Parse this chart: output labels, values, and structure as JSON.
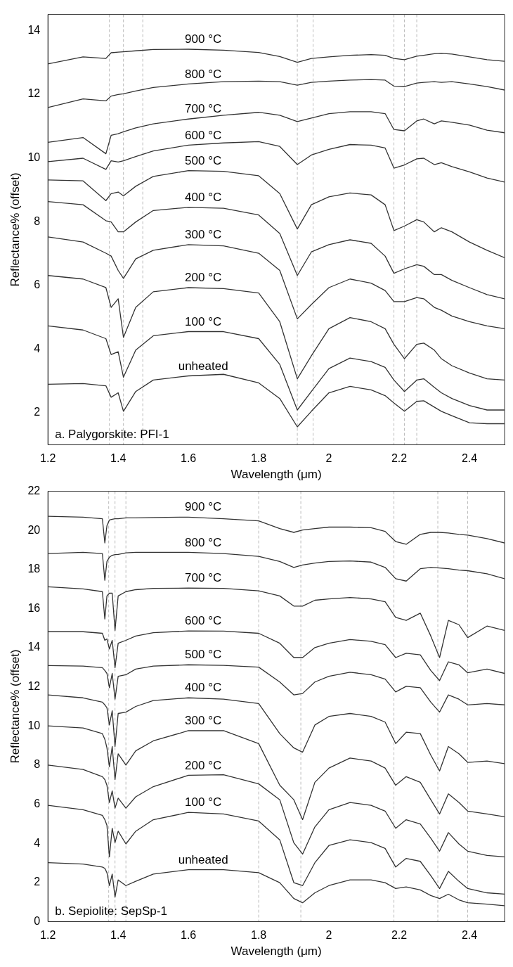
{
  "chart_data": [
    {
      "type": "line",
      "xlabel": "Wavelength (μm)",
      "ylabel": "Reflectance% (offset)",
      "annotations": [
        "a. Palygorskite: PFI-1"
      ],
      "line_style": "solid",
      "x": [
        1.2,
        1.3,
        1.365,
        1.38,
        1.4,
        1.415,
        1.45,
        1.5,
        1.6,
        1.7,
        1.8,
        1.86,
        1.91,
        1.95,
        2.0,
        2.06,
        2.12,
        2.16,
        2.185,
        2.215,
        2.25,
        2.27,
        2.3,
        2.32,
        2.35,
        2.4,
        2.45,
        2.5
      ],
      "xlim": [
        1.2,
        2.5
      ],
      "xticks": [
        1.2,
        1.4,
        1.6,
        1.8,
        2,
        2.2,
        2.4
      ],
      "ylim": [
        1,
        14.5
      ],
      "yticks": [
        2,
        4,
        6,
        8,
        10,
        12,
        14
      ],
      "ref_lines": [
        {
          "axis": "x",
          "value": 1.375,
          "color": "#bbbbbb",
          "line_style": "dashed"
        },
        {
          "axis": "x",
          "value": 1.415,
          "color": "#bbbbbb",
          "line_style": "dashed"
        },
        {
          "axis": "x",
          "value": 1.47,
          "color": "#bbbbbb",
          "line_style": "dashed"
        },
        {
          "axis": "x",
          "value": 1.91,
          "color": "#bbbbbb",
          "line_style": "dashed"
        },
        {
          "axis": "x",
          "value": 1.955,
          "color": "#bbbbbb",
          "line_style": "dashed"
        },
        {
          "axis": "x",
          "value": 2.185,
          "color": "#bbbbbb",
          "line_style": "dashed"
        },
        {
          "axis": "x",
          "value": 2.215,
          "color": "#bbbbbb",
          "line_style": "dashed"
        },
        {
          "axis": "x",
          "value": 2.25,
          "color": "#bbbbbb",
          "line_style": "dashed"
        }
      ],
      "series": [
        {
          "name": "900 °C",
          "color": "#333333",
          "values": [
            12.95,
            13.17,
            13.12,
            13.3,
            13.32,
            13.33,
            13.36,
            13.4,
            13.41,
            13.38,
            13.31,
            13.18,
            13.0,
            13.12,
            13.17,
            13.22,
            13.24,
            13.22,
            13.12,
            13.08,
            13.19,
            13.22,
            13.27,
            13.28,
            13.26,
            13.17,
            13.08,
            13.03
          ]
        },
        {
          "name": "800 °C",
          "color": "#333333",
          "values": [
            11.58,
            11.85,
            11.79,
            11.94,
            11.99,
            12.01,
            12.1,
            12.21,
            12.32,
            12.39,
            12.41,
            12.39,
            12.28,
            12.37,
            12.41,
            12.44,
            12.46,
            12.44,
            12.25,
            12.24,
            12.35,
            12.37,
            12.39,
            12.37,
            12.39,
            12.32,
            12.24,
            12.13
          ]
        },
        {
          "name": "700 °C",
          "color": "#333333",
          "values": [
            10.49,
            10.64,
            10.13,
            10.71,
            10.76,
            10.82,
            10.94,
            11.07,
            11.22,
            11.34,
            11.43,
            11.34,
            11.14,
            11.25,
            11.39,
            11.45,
            11.45,
            11.39,
            10.89,
            10.85,
            11.16,
            11.22,
            11.07,
            11.16,
            11.12,
            11.03,
            10.87,
            10.79
          ]
        },
        {
          "name": "600 °C",
          "color": "#333333",
          "values": [
            9.88,
            9.99,
            9.64,
            9.91,
            9.87,
            9.91,
            10.04,
            10.22,
            10.4,
            10.47,
            10.51,
            10.36,
            9.79,
            10.09,
            10.27,
            10.42,
            10.4,
            10.31,
            9.68,
            9.78,
            9.97,
            9.99,
            9.79,
            9.85,
            9.73,
            9.56,
            9.37,
            9.24
          ]
        },
        {
          "name": "500 °C",
          "color": "#333333",
          "values": [
            9.31,
            9.28,
            8.66,
            8.88,
            8.93,
            8.81,
            9.11,
            9.42,
            9.6,
            9.58,
            9.44,
            8.88,
            7.77,
            8.53,
            8.78,
            8.9,
            8.84,
            8.53,
            7.72,
            7.86,
            8.06,
            7.99,
            7.68,
            7.81,
            7.68,
            7.36,
            7.1,
            6.87
          ]
        },
        {
          "name": "400 °C",
          "color": "#333333",
          "values": [
            8.63,
            8.53,
            8.03,
            7.99,
            7.68,
            7.68,
            7.99,
            8.35,
            8.45,
            8.42,
            8.21,
            7.63,
            6.31,
            7.05,
            7.28,
            7.43,
            7.32,
            6.92,
            6.38,
            6.52,
            6.65,
            6.6,
            6.34,
            6.34,
            6.16,
            5.93,
            5.71,
            5.58
          ]
        },
        {
          "name": "300 °C",
          "color": "#333333",
          "values": [
            7.52,
            7.36,
            7.01,
            6.92,
            6.47,
            6.22,
            6.83,
            7.1,
            7.28,
            7.24,
            7.01,
            6.47,
            4.95,
            5.4,
            5.93,
            6.2,
            6.07,
            5.84,
            5.49,
            5.49,
            5.62,
            5.58,
            5.31,
            5.22,
            5.04,
            4.86,
            4.73,
            4.64
          ]
        },
        {
          "name": "200 °C",
          "color": "#333333",
          "values": [
            6.31,
            6.2,
            5.93,
            5.31,
            5.58,
            4.37,
            5.31,
            5.8,
            5.93,
            5.9,
            5.76,
            4.86,
            3.07,
            3.79,
            4.64,
            4.99,
            4.86,
            4.64,
            4.15,
            3.7,
            4.15,
            4.19,
            3.97,
            3.7,
            3.48,
            3.25,
            3.07,
            3.03
          ]
        },
        {
          "name": "100 °C",
          "color": "#333333",
          "values": [
            4.73,
            4.6,
            4.33,
            3.83,
            3.92,
            3.12,
            3.97,
            4.42,
            4.55,
            4.55,
            4.33,
            3.52,
            2.09,
            2.67,
            3.39,
            3.72,
            3.61,
            3.43,
            3.03,
            2.67,
            3.03,
            3.07,
            2.8,
            2.63,
            2.45,
            2.23,
            2.09,
            2.09
          ]
        },
        {
          "name": "unheated",
          "color": "#333333",
          "values": [
            2.9,
            2.92,
            2.85,
            2.49,
            2.63,
            2.05,
            2.67,
            3.03,
            3.16,
            3.21,
            2.94,
            2.45,
            1.56,
            2.05,
            2.63,
            2.83,
            2.72,
            2.54,
            2.31,
            2.05,
            2.36,
            2.38,
            2.18,
            2.05,
            1.91,
            1.69,
            1.66,
            1.66
          ]
        }
      ]
    },
    {
      "type": "line",
      "xlabel": "Wavelength (μm)",
      "ylabel": "Reflectance% (offset)",
      "annotations": [
        "b. Sepiolite: SepSp-1"
      ],
      "line_style": "solid",
      "x": [
        1.2,
        1.3,
        1.355,
        1.362,
        1.368,
        1.375,
        1.383,
        1.391,
        1.4,
        1.422,
        1.45,
        1.5,
        1.6,
        1.7,
        1.8,
        1.86,
        1.9,
        1.925,
        1.96,
        2.0,
        2.06,
        2.12,
        2.16,
        2.19,
        2.22,
        2.26,
        2.29,
        2.315,
        2.34,
        2.37,
        2.395,
        2.45,
        2.5
      ],
      "xlim": [
        1.2,
        2.5
      ],
      "xticks": [
        1.2,
        1.4,
        1.6,
        1.8,
        2,
        2.2,
        2.4
      ],
      "ylim": [
        0,
        22
      ],
      "yticks": [
        0,
        2,
        4,
        6,
        8,
        10,
        12,
        14,
        16,
        18,
        20,
        22
      ],
      "ref_lines": [
        {
          "axis": "x",
          "value": 1.373,
          "color": "#bbbbbb",
          "line_style": "dashed"
        },
        {
          "axis": "x",
          "value": 1.391,
          "color": "#bbbbbb",
          "line_style": "dashed"
        },
        {
          "axis": "x",
          "value": 1.422,
          "color": "#bbbbbb",
          "line_style": "dashed"
        },
        {
          "axis": "x",
          "value": 1.8,
          "color": "#bbbbbb",
          "line_style": "dashed"
        },
        {
          "axis": "x",
          "value": 1.92,
          "color": "#bbbbbb",
          "line_style": "dashed"
        },
        {
          "axis": "x",
          "value": 2.185,
          "color": "#bbbbbb",
          "line_style": "dashed"
        },
        {
          "axis": "x",
          "value": 2.31,
          "color": "#bbbbbb",
          "line_style": "dashed"
        },
        {
          "axis": "x",
          "value": 2.395,
          "color": "#bbbbbb",
          "line_style": "dashed"
        }
      ],
      "series": [
        {
          "name": "900 °C",
          "color": "#333333",
          "values": [
            20.72,
            20.68,
            20.6,
            19.36,
            20.24,
            20.53,
            20.57,
            20.6,
            20.6,
            20.64,
            20.64,
            20.66,
            20.68,
            20.6,
            20.49,
            20.09,
            19.9,
            20.02,
            20.09,
            20.17,
            20.17,
            20.14,
            19.95,
            19.43,
            19.29,
            19.8,
            19.9,
            19.9,
            19.87,
            19.8,
            19.76,
            19.58,
            19.36
          ]
        },
        {
          "name": "800 °C",
          "color": "#333333",
          "values": [
            18.82,
            18.88,
            18.82,
            17.45,
            18.41,
            18.63,
            18.73,
            18.76,
            18.77,
            18.85,
            18.88,
            18.88,
            18.88,
            18.82,
            18.67,
            18.41,
            18.11,
            18.23,
            18.33,
            18.41,
            18.44,
            18.38,
            18.11,
            17.53,
            17.41,
            18.04,
            18.11,
            18.08,
            18.04,
            17.97,
            17.94,
            17.78,
            17.53
          ]
        },
        {
          "name": "700 °C",
          "color": "#333333",
          "values": [
            17.12,
            17.01,
            16.87,
            15.47,
            16.65,
            16.79,
            16.79,
            14.89,
            16.65,
            16.87,
            16.97,
            17.04,
            17.05,
            17.04,
            16.91,
            16.65,
            16.13,
            16.13,
            16.43,
            16.5,
            16.57,
            16.5,
            16.35,
            15.55,
            15.4,
            15.77,
            14.6,
            13.5,
            15.4,
            15.18,
            14.52,
            15.11,
            14.89
          ]
        },
        {
          "name": "600 °C",
          "color": "#333333",
          "values": [
            14.82,
            14.82,
            14.74,
            14.38,
            14.45,
            13.94,
            14.38,
            12.98,
            14.23,
            14.38,
            14.6,
            14.77,
            14.86,
            14.85,
            14.74,
            14.23,
            13.5,
            13.5,
            14.01,
            14.23,
            14.42,
            14.33,
            14.16,
            13.5,
            13.72,
            13.64,
            12.84,
            12.32,
            13.28,
            13.13,
            12.72,
            12.91,
            12.69
          ]
        },
        {
          "name": "500 °C",
          "color": "#333333",
          "values": [
            13.09,
            13.06,
            12.98,
            12.84,
            12.69,
            11.96,
            12.69,
            11.37,
            12.54,
            12.62,
            12.91,
            13.06,
            13.13,
            13.1,
            13.01,
            12.25,
            11.59,
            11.66,
            12.25,
            12.54,
            12.75,
            12.62,
            12.4,
            11.74,
            12.03,
            11.96,
            11.22,
            10.71,
            11.59,
            11.37,
            11.08,
            11.15,
            11.08
          ]
        },
        {
          "name": "400 °C",
          "color": "#333333",
          "values": [
            11.59,
            11.44,
            11.22,
            11.08,
            10.93,
            10.05,
            10.78,
            8.95,
            10.64,
            10.71,
            11.0,
            11.3,
            11.44,
            11.37,
            11.15,
            9.61,
            8.88,
            8.66,
            10.05,
            10.49,
            10.64,
            10.49,
            10.2,
            9.1,
            9.68,
            9.61,
            8.51,
            7.7,
            8.95,
            8.58,
            8.14,
            8.21,
            8.07
          ]
        },
        {
          "name": "300 °C",
          "color": "#333333",
          "values": [
            10.01,
            9.9,
            9.61,
            9.32,
            8.88,
            7.92,
            8.95,
            7.26,
            8.58,
            8.0,
            8.73,
            9.24,
            9.76,
            9.76,
            9.1,
            6.97,
            6.23,
            5.21,
            7.12,
            7.85,
            8.36,
            8.21,
            7.85,
            6.97,
            7.41,
            7.12,
            6.23,
            5.5,
            6.53,
            6.09,
            5.65,
            5.5,
            5.36
          ]
        },
        {
          "name": "200 °C",
          "color": "#333333",
          "values": [
            8.0,
            7.78,
            7.41,
            7.26,
            6.97,
            6.09,
            6.68,
            5.8,
            6.31,
            5.8,
            6.38,
            6.9,
            7.48,
            7.51,
            7.04,
            6.23,
            4.03,
            3.45,
            4.84,
            5.72,
            6.09,
            5.94,
            5.65,
            4.77,
            5.21,
            4.99,
            4.26,
            3.6,
            4.55,
            3.97,
            3.6,
            3.38,
            3.31
          ]
        },
        {
          "name": "100 °C",
          "color": "#333333",
          "values": [
            5.94,
            5.72,
            5.43,
            5.21,
            4.92,
            3.31,
            4.77,
            4.04,
            4.62,
            3.97,
            4.62,
            5.21,
            5.58,
            5.5,
            5.14,
            4.18,
            1.99,
            1.84,
            3.01,
            3.89,
            4.18,
            4.04,
            3.74,
            2.79,
            3.23,
            3.08,
            2.35,
            1.69,
            2.57,
            2.06,
            1.69,
            1.47,
            1.4
          ]
        },
        {
          "name": "unheated",
          "color": "#333333",
          "values": [
            3.01,
            2.94,
            2.79,
            2.72,
            2.5,
            1.84,
            2.43,
            1.25,
            2.13,
            1.84,
            2.06,
            2.43,
            2.65,
            2.65,
            2.5,
            1.99,
            1.18,
            0.96,
            1.47,
            1.84,
            2.13,
            2.13,
            1.99,
            1.69,
            1.77,
            1.62,
            1.33,
            1.18,
            1.4,
            1.11,
            0.96,
            0.89,
            0.81
          ]
        }
      ]
    }
  ]
}
